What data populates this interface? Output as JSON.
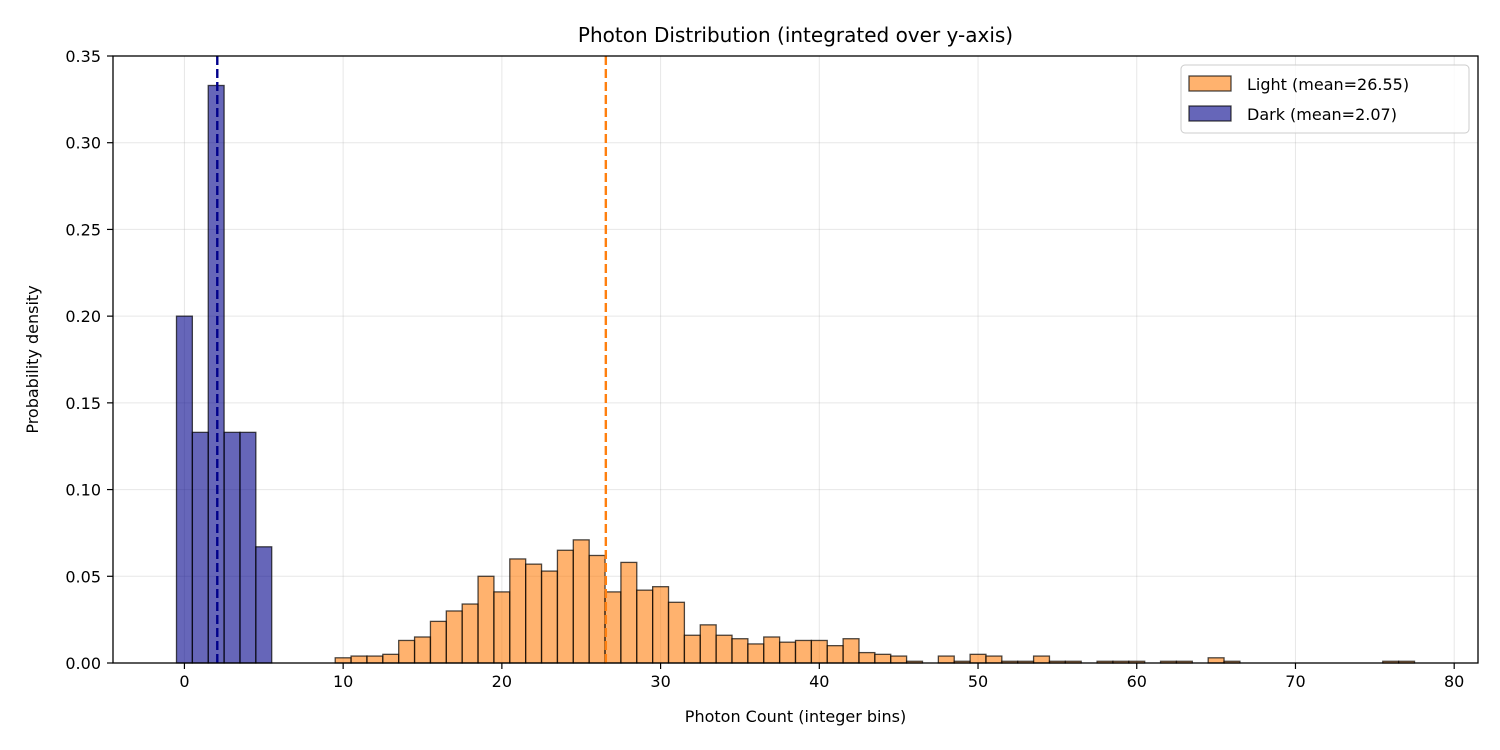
{
  "chart_data": {
    "type": "bar",
    "title": "Photon Distribution (integrated over y-axis)",
    "xlabel": "Photon Count (integer bins)",
    "ylabel": "Probability density",
    "xlim": [
      -4.5,
      81.5
    ],
    "ylim": [
      0,
      0.35
    ],
    "x_ticks": [
      0,
      10,
      20,
      30,
      40,
      50,
      60,
      70,
      80
    ],
    "x_tick_labels": [
      "0",
      "10",
      "20",
      "30",
      "40",
      "50",
      "60",
      "70",
      "80"
    ],
    "y_ticks": [
      0,
      0.05,
      0.1,
      0.15,
      0.2,
      0.25,
      0.3,
      0.35
    ],
    "y_tick_labels": [
      "0.00",
      "0.05",
      "0.10",
      "0.15",
      "0.20",
      "0.25",
      "0.30",
      "0.35"
    ],
    "grid": true,
    "legend_position": "top-right",
    "series": [
      {
        "name": "Light (mean=26.55)",
        "color": "#ff7f0e",
        "mean": 26.55,
        "x": [
          10,
          11,
          12,
          13,
          14,
          15,
          16,
          17,
          18,
          19,
          20,
          21,
          22,
          23,
          24,
          25,
          26,
          27,
          28,
          29,
          30,
          31,
          32,
          33,
          34,
          35,
          36,
          37,
          38,
          39,
          40,
          41,
          42,
          43,
          44,
          45,
          46,
          48,
          49,
          50,
          51,
          52,
          53,
          54,
          55,
          56,
          58,
          59,
          60,
          62,
          63,
          65,
          66,
          76,
          77
        ],
        "values": [
          0.003,
          0.004,
          0.004,
          0.005,
          0.013,
          0.015,
          0.024,
          0.03,
          0.034,
          0.05,
          0.041,
          0.06,
          0.057,
          0.053,
          0.065,
          0.071,
          0.062,
          0.041,
          0.058,
          0.042,
          0.044,
          0.035,
          0.016,
          0.022,
          0.016,
          0.014,
          0.011,
          0.015,
          0.012,
          0.013,
          0.013,
          0.01,
          0.014,
          0.006,
          0.005,
          0.004,
          0.001,
          0.004,
          0.001,
          0.005,
          0.004,
          0.001,
          0.001,
          0.004,
          0.001,
          0.001,
          0.001,
          0.001,
          0.001,
          0.001,
          0.001,
          0.003,
          0.001,
          0.001,
          0.001
        ]
      },
      {
        "name": "Dark (mean=2.07)",
        "color": "#00008b",
        "mean": 2.07,
        "x": [
          0,
          1,
          2,
          3,
          4,
          5
        ],
        "values": [
          0.2,
          0.133,
          0.333,
          0.133,
          0.133,
          0.067
        ]
      }
    ]
  }
}
